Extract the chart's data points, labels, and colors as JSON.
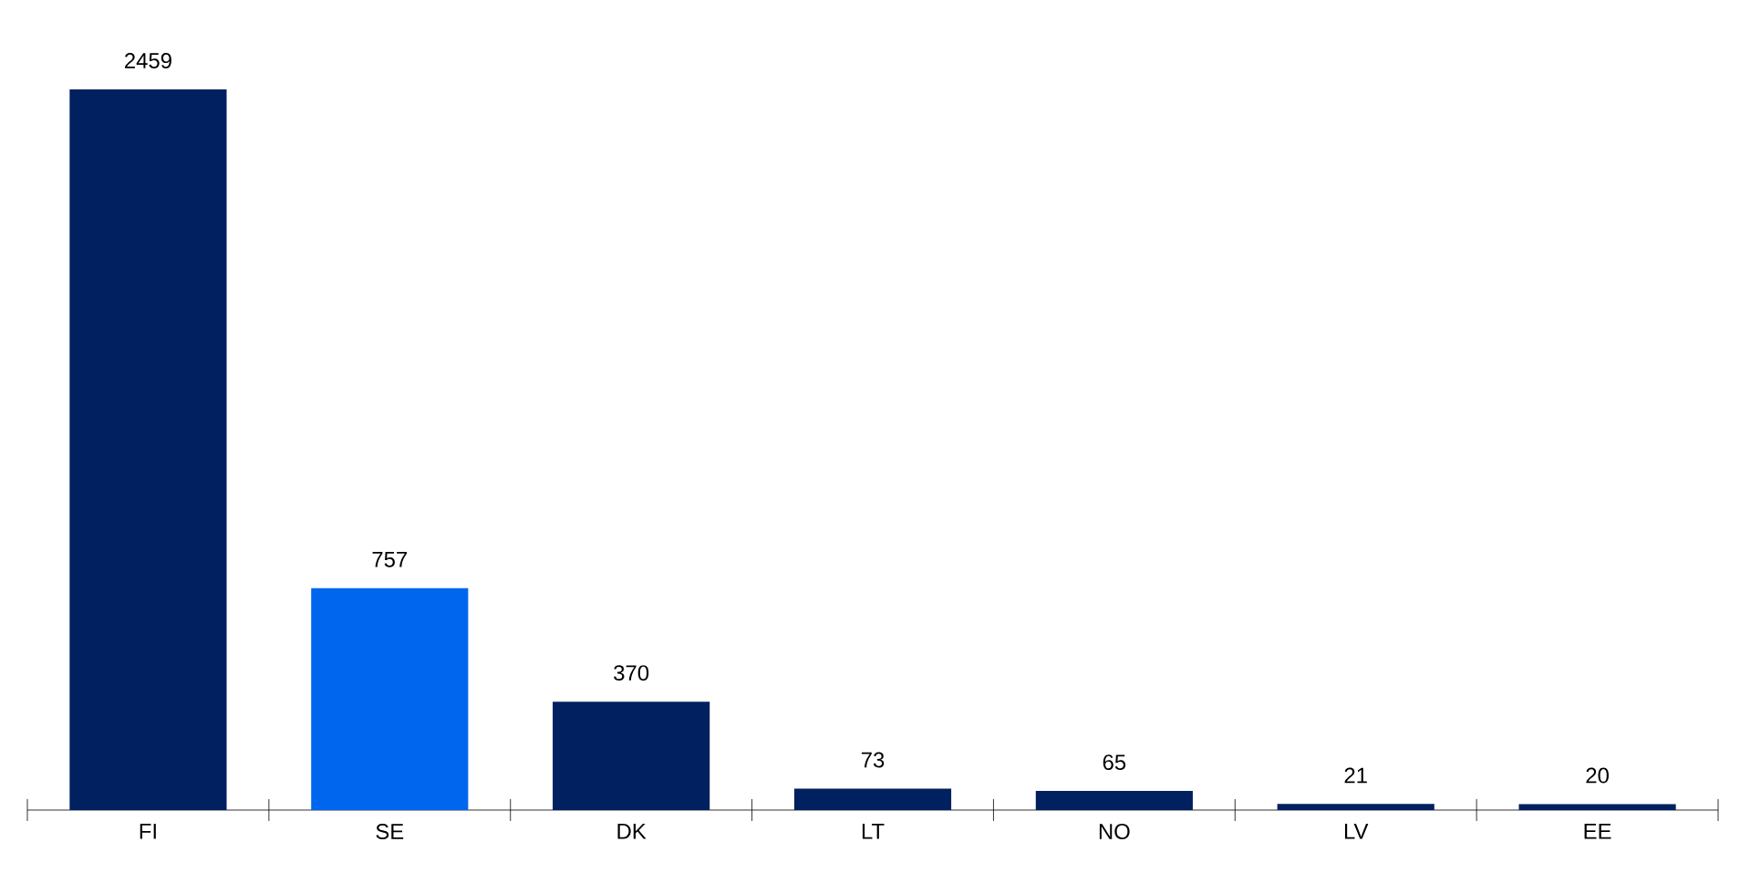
{
  "chart_data": {
    "type": "bar",
    "categories": [
      "FI",
      "SE",
      "DK",
      "LT",
      "NO",
      "LV",
      "EE"
    ],
    "values": [
      2459,
      757,
      370,
      73,
      65,
      21,
      20
    ],
    "colors": [
      "#002060",
      "#0066ee",
      "#002060",
      "#002060",
      "#002060",
      "#002060",
      "#002060"
    ],
    "data_labels": true
  }
}
